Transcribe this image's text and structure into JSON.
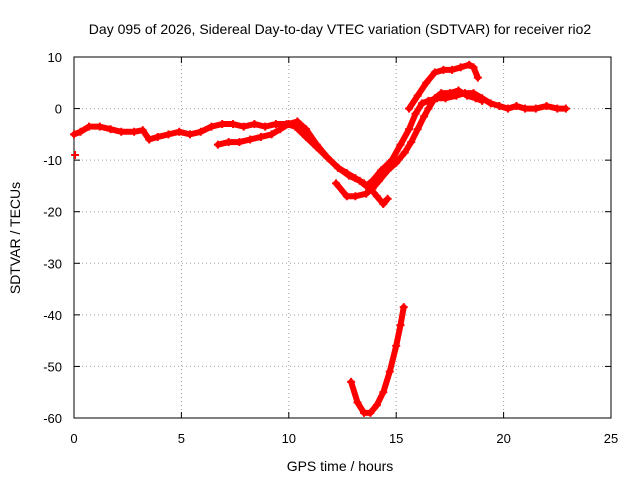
{
  "chart_data": {
    "type": "scatter",
    "title": "Day 095 of 2026, Sidereal Day-to-day VTEC variation (SDTVAR) for receiver rio2",
    "xlabel": "GPS time / hours",
    "ylabel": "SDTVAR / TECUs",
    "xlim": [
      0,
      25
    ],
    "ylim": [
      -60,
      10
    ],
    "xticks": [
      0,
      5,
      10,
      15,
      20,
      25
    ],
    "yticks": [
      -60,
      -50,
      -40,
      -30,
      -20,
      -10,
      0,
      10
    ],
    "grid": true,
    "series_color": "#ff0000",
    "series": [
      {
        "name": "main-track",
        "points": [
          [
            0,
            -5
          ],
          [
            0.3,
            -4.5
          ],
          [
            0.7,
            -3.5
          ],
          [
            1.2,
            -3.5
          ],
          [
            1.7,
            -4.0
          ],
          [
            2.2,
            -4.5
          ],
          [
            2.8,
            -4.5
          ],
          [
            3.2,
            -4.2
          ],
          [
            3.5,
            -6.0
          ],
          [
            3.9,
            -5.5
          ],
          [
            4.4,
            -5.0
          ],
          [
            4.9,
            -4.5
          ],
          [
            5.4,
            -5.0
          ],
          [
            5.9,
            -4.5
          ],
          [
            6.4,
            -3.5
          ],
          [
            6.9,
            -3.0
          ],
          [
            7.4,
            -3.0
          ],
          [
            7.9,
            -3.5
          ],
          [
            8.4,
            -3.0
          ],
          [
            8.9,
            -3.5
          ],
          [
            9.4,
            -3.0
          ],
          [
            9.9,
            -3.0
          ],
          [
            10.3,
            -3.5
          ],
          [
            10.8,
            -5.5
          ],
          [
            11.3,
            -7.5
          ],
          [
            11.8,
            -9.5
          ],
          [
            12.3,
            -11.5
          ],
          [
            12.8,
            -13.0
          ],
          [
            13.3,
            -14.0
          ],
          [
            13.6,
            -15.0
          ],
          [
            13.9,
            -14.0
          ],
          [
            14.3,
            -12.0
          ],
          [
            14.8,
            -10.0
          ],
          [
            15.2,
            -7.0
          ],
          [
            15.6,
            -4.0
          ],
          [
            15.9,
            -1.0
          ],
          [
            16.2,
            1.0
          ],
          [
            16.5,
            1.5
          ],
          [
            16.9,
            2.0
          ],
          [
            17.3,
            2.0
          ],
          [
            17.8,
            2.5
          ],
          [
            18.2,
            3.0
          ],
          [
            18.6,
            3.0
          ],
          [
            19.0,
            2.0
          ],
          [
            19.4,
            1.0
          ],
          [
            19.8,
            0.5
          ],
          [
            20.2,
            0.0
          ],
          [
            20.6,
            0.5
          ],
          [
            21.0,
            0.0
          ],
          [
            21.5,
            0.0
          ],
          [
            22.0,
            0.5
          ],
          [
            22.5,
            0.0
          ],
          [
            22.9,
            0.0
          ]
        ]
      },
      {
        "name": "second-track",
        "points": [
          [
            6.7,
            -7.0
          ],
          [
            7.2,
            -6.5
          ],
          [
            7.7,
            -6.5
          ],
          [
            8.2,
            -6.0
          ],
          [
            8.7,
            -5.5
          ],
          [
            9.2,
            -5.0
          ],
          [
            9.6,
            -4.0
          ],
          [
            10.0,
            -3.0
          ],
          [
            10.4,
            -2.5
          ],
          [
            10.8,
            -4.0
          ],
          [
            11.3,
            -7.0
          ],
          [
            11.8,
            -9.5
          ],
          [
            12.3,
            -11.5
          ],
          [
            12.7,
            -12.5
          ],
          [
            13.1,
            -13.5
          ],
          [
            13.5,
            -14.5
          ],
          [
            13.8,
            -15.5
          ],
          [
            14.1,
            -17.0
          ],
          [
            14.4,
            -18.5
          ],
          [
            14.6,
            -17.5
          ]
        ]
      },
      {
        "name": "third-track",
        "points": [
          [
            12.2,
            -14.5
          ],
          [
            12.7,
            -17.0
          ],
          [
            13.1,
            -17.0
          ],
          [
            13.6,
            -16.5
          ],
          [
            13.9,
            -15.5
          ],
          [
            14.2,
            -14.0
          ],
          [
            14.6,
            -12.0
          ],
          [
            15.0,
            -10.5
          ],
          [
            15.4,
            -8.5
          ],
          [
            15.7,
            -6.5
          ],
          [
            16.0,
            -4.0
          ],
          [
            16.3,
            -1.5
          ],
          [
            16.5,
            0.0
          ],
          [
            16.8,
            2.0
          ],
          [
            17.1,
            3.0
          ],
          [
            17.5,
            3.0
          ],
          [
            17.9,
            3.5
          ],
          [
            18.3,
            2.5
          ],
          [
            18.7,
            2.0
          ],
          [
            19.0,
            1.5
          ]
        ]
      },
      {
        "name": "upper-branch",
        "points": [
          [
            15.6,
            0.0
          ],
          [
            16.0,
            2.5
          ],
          [
            16.4,
            5.0
          ],
          [
            16.8,
            7.0
          ],
          [
            17.2,
            7.5
          ],
          [
            17.6,
            7.5
          ],
          [
            18.0,
            8.0
          ],
          [
            18.4,
            8.5
          ],
          [
            18.6,
            8.0
          ],
          [
            18.8,
            6.0
          ]
        ]
      },
      {
        "name": "lower-dip",
        "points": [
          [
            12.9,
            -53.0
          ],
          [
            13.2,
            -57.0
          ],
          [
            13.5,
            -59.0
          ],
          [
            13.8,
            -59.0
          ],
          [
            14.1,
            -57.5
          ],
          [
            14.4,
            -55.0
          ],
          [
            14.7,
            -51.0
          ],
          [
            15.0,
            -46.0
          ],
          [
            15.2,
            -42.0
          ],
          [
            15.35,
            -38.5
          ]
        ]
      },
      {
        "name": "outlier",
        "points": [
          [
            0.05,
            -9.0
          ]
        ]
      }
    ]
  }
}
